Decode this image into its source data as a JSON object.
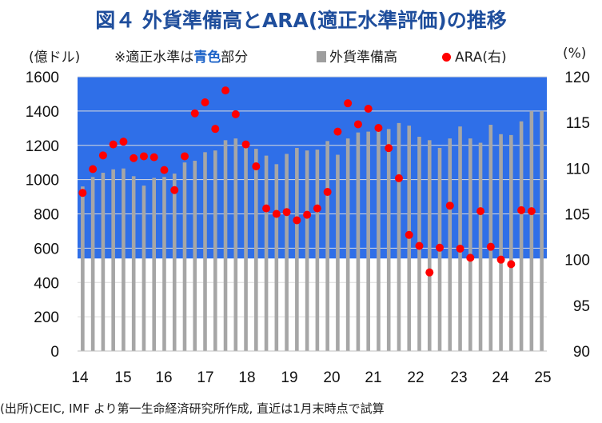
{
  "title": "図４ 外貨準備高とARA(適正水準評価)の推移",
  "header": {
    "left_unit": "(億ドル)",
    "note_prefix": "※適正水準は",
    "note_highlight": "青色",
    "note_suffix": "部分",
    "right_unit": "(%)"
  },
  "source": "(出所)CEIC, IMF より第一生命経済研究所作成, 直近は1月末時点で試算",
  "colors": {
    "band": "#2f6fe8",
    "bar": "#a6a6a6",
    "dot": "#ff0000"
  },
  "chart_data": {
    "type": "bar",
    "x_labels": [
      "14",
      "15",
      "16",
      "17",
      "18",
      "19",
      "20",
      "21",
      "22",
      "23",
      "24",
      "25"
    ],
    "y_left_ticks": [
      "0",
      "200",
      "400",
      "600",
      "800",
      "1000",
      "1200",
      "1400",
      "1600"
    ],
    "y_right_ticks": [
      "90",
      "95",
      "100",
      "105",
      "110",
      "115",
      "120"
    ],
    "ylim_left": [
      0,
      1600
    ],
    "ylim_right": [
      90,
      120
    ],
    "adequacy_band": [
      540,
      1600
    ],
    "series": [
      {
        "name": "外貨準備高",
        "axis": "left",
        "type": "bar",
        "values": [
          960,
          1015,
          1040,
          1060,
          1065,
          1020,
          965,
          1010,
          1015,
          1035,
          1100,
          1110,
          1160,
          1170,
          1230,
          1240,
          1220,
          1180,
          1140,
          1090,
          1150,
          1185,
          1170,
          1175,
          1225,
          1145,
          1240,
          1275,
          1280,
          1300,
          1295,
          1330,
          1315,
          1250,
          1230,
          1185,
          1240,
          1310,
          1240,
          1215,
          1320,
          1265,
          1260,
          1340,
          1400,
          1400
        ]
      },
      {
        "name": "ARA(右)",
        "axis": "right",
        "type": "scatter",
        "values": [
          107.3,
          109.9,
          111.4,
          112.6,
          112.9,
          111.1,
          111.3,
          111.2,
          109.8,
          107.6,
          111.3,
          116.0,
          117.2,
          114.3,
          118.5,
          115.9,
          112.6,
          110.2,
          105.6,
          105.0,
          105.2,
          104.3,
          104.9,
          105.6,
          107.4,
          114.0,
          117.1,
          114.8,
          116.5,
          114.4,
          112.2,
          108.9,
          102.7,
          101.5,
          98.6,
          101.3,
          105.9,
          101.2,
          100.2,
          105.3,
          101.4,
          100.0,
          99.5,
          105.4,
          105.3
        ]
      }
    ]
  }
}
